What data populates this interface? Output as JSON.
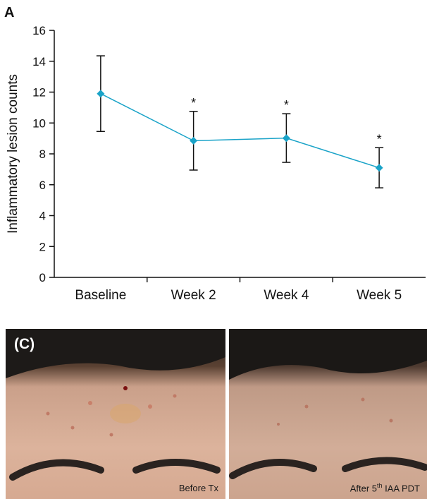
{
  "panel_a_label": "A",
  "chart_data": {
    "type": "line",
    "title": "",
    "ylabel": "Inflammatory lesion counts",
    "xlabel": "",
    "categories": [
      "Baseline",
      "Week 2",
      "Week 4",
      "Week 5"
    ],
    "values": [
      11.9,
      8.85,
      9.02,
      7.1
    ],
    "error_upper": [
      14.35,
      10.75,
      10.6,
      8.4
    ],
    "error_lower": [
      9.45,
      6.95,
      7.45,
      5.8
    ],
    "significance": [
      "",
      "*",
      "*",
      "*"
    ],
    "ylim": [
      0,
      16
    ],
    "yticks": [
      0,
      2,
      4,
      6,
      8,
      10,
      12,
      14,
      16
    ],
    "grid": false,
    "series_color": "#1aa3c8"
  },
  "photos": {
    "panel_label": "(C)",
    "before_caption": "Before Tx",
    "after_caption_pre": "After 5",
    "after_caption_sup": "th",
    "after_caption_post": " IAA PDT"
  }
}
